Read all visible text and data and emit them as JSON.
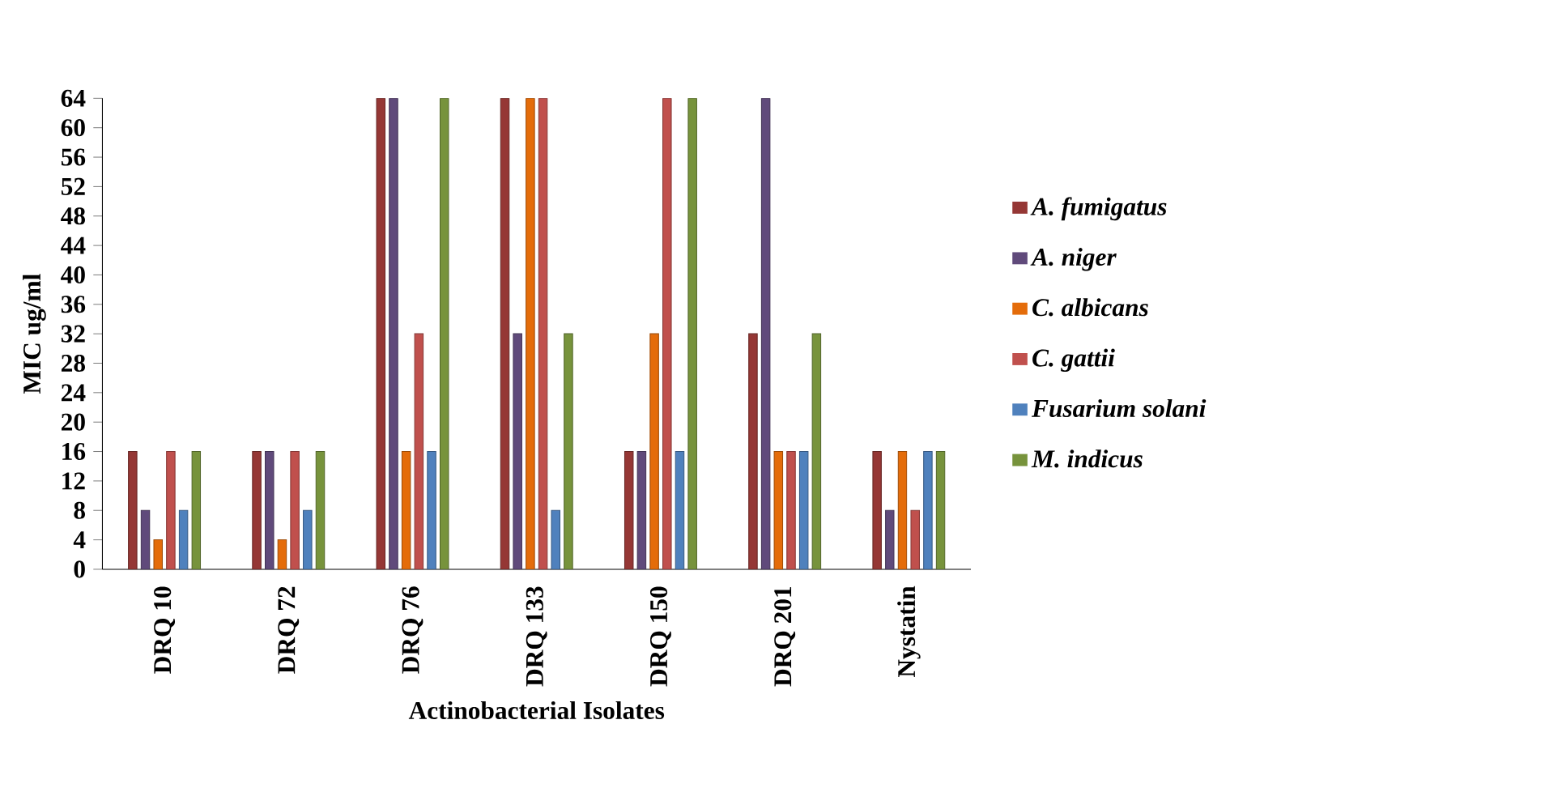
{
  "chart_data": {
    "type": "bar",
    "xlabel": "Actinobacterial Isolates",
    "ylabel": "MIC ug/ml",
    "categories": [
      "DRQ 10",
      "DRQ 72",
      "DRQ 76",
      "DRQ 133",
      "DRQ 150",
      "DRQ 201",
      "Nystatin"
    ],
    "series": [
      {
        "name": "A. fumigatus",
        "color": "#953735",
        "values": [
          16,
          16,
          64,
          64,
          16,
          32,
          16
        ]
      },
      {
        "name": "A. niger",
        "color": "#604a7b",
        "values": [
          8,
          16,
          64,
          32,
          16,
          64,
          8
        ]
      },
      {
        "name": "C. albicans",
        "color": "#e46c0a",
        "values": [
          4,
          4,
          16,
          64,
          32,
          16,
          16
        ]
      },
      {
        "name": "C. gattii",
        "color": "#c0504d",
        "values": [
          16,
          16,
          32,
          64,
          64,
          16,
          8
        ]
      },
      {
        "name": "Fusarium solani",
        "color": "#4f81bd",
        "values": [
          8,
          8,
          16,
          8,
          16,
          16,
          16
        ]
      },
      {
        "name": "M. indicus",
        "color": "#77933c",
        "values": [
          16,
          16,
          64,
          32,
          64,
          32,
          16
        ]
      }
    ],
    "ylim": [
      0,
      64
    ],
    "yticks": [
      0,
      4,
      8,
      12,
      16,
      20,
      24,
      28,
      32,
      36,
      40,
      44,
      48,
      52,
      56,
      60,
      64
    ],
    "grid": false,
    "legend": "right"
  }
}
